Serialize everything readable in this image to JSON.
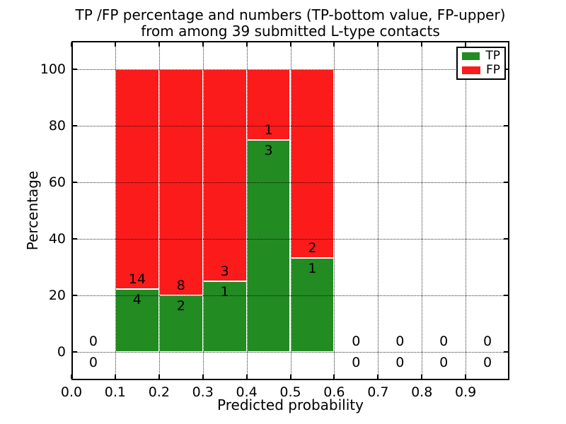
{
  "title": {
    "line1": "TP /FP percentage and numbers (TP-bottom value, FP-upper)",
    "line2": "from among 39 submitted L-type contacts"
  },
  "axes": {
    "xlabel": "Predicted probability",
    "ylabel": "Percentage"
  },
  "legend": {
    "items": [
      {
        "label": "TP",
        "color": "#228b22"
      },
      {
        "label": "FP",
        "color": "#fb1b1b"
      }
    ]
  },
  "chart_data": {
    "type": "bar",
    "stacked": true,
    "title": "TP /FP percentage and numbers (TP-bottom value, FP-upper)\nfrom among 39 submitted L-type contacts",
    "xlabel": "Predicted probability",
    "ylabel": "Percentage",
    "xlim": [
      0.0,
      1.0
    ],
    "ylim": [
      -10,
      110
    ],
    "x_ticks": [
      0.0,
      0.1,
      0.2,
      0.3,
      0.4,
      0.5,
      0.6,
      0.7,
      0.8,
      0.9
    ],
    "x_tick_labels": [
      "0.0",
      "0.1",
      "0.2",
      "0.3",
      "0.4",
      "0.5",
      "0.6",
      "0.7",
      "0.8",
      "0.9"
    ],
    "y_ticks": [
      0,
      20,
      40,
      60,
      80,
      100
    ],
    "y_tick_labels": [
      "0",
      "20",
      "40",
      "60",
      "80",
      "100"
    ],
    "grid": true,
    "grid_style": "dotted",
    "legend_position": "upper right",
    "total_contacts": 39,
    "series": [
      {
        "name": "TP",
        "color": "#228b22",
        "counts": [
          4,
          2,
          1,
          3,
          1
        ],
        "percentages": [
          22.2,
          20.0,
          25.0,
          75.0,
          33.3
        ]
      },
      {
        "name": "FP",
        "color": "#fb1b1b",
        "counts": [
          14,
          8,
          3,
          1,
          2
        ],
        "percentages": [
          77.8,
          80.0,
          75.0,
          25.0,
          66.7
        ]
      }
    ],
    "bins": [
      {
        "x_start": 0.1,
        "x_end": 0.2,
        "tp_count": 4,
        "fp_count": 14,
        "tp_pct": 22.2
      },
      {
        "x_start": 0.2,
        "x_end": 0.3,
        "tp_count": 2,
        "fp_count": 8,
        "tp_pct": 20.0
      },
      {
        "x_start": 0.3,
        "x_end": 0.4,
        "tp_count": 1,
        "fp_count": 3,
        "tp_pct": 25.0
      },
      {
        "x_start": 0.4,
        "x_end": 0.5,
        "tp_count": 3,
        "fp_count": 1,
        "tp_pct": 75.0
      },
      {
        "x_start": 0.5,
        "x_end": 0.6,
        "tp_count": 1,
        "fp_count": 2,
        "tp_pct": 33.3
      }
    ],
    "empty_bins": [
      {
        "x_center": 0.05,
        "tp_count": 0,
        "fp_count": 0
      },
      {
        "x_center": 0.65,
        "tp_count": 0,
        "fp_count": 0
      },
      {
        "x_center": 0.75,
        "tp_count": 0,
        "fp_count": 0
      },
      {
        "x_center": 0.85,
        "tp_count": 0,
        "fp_count": 0
      },
      {
        "x_center": 0.95,
        "tp_count": 0,
        "fp_count": 0
      }
    ]
  }
}
